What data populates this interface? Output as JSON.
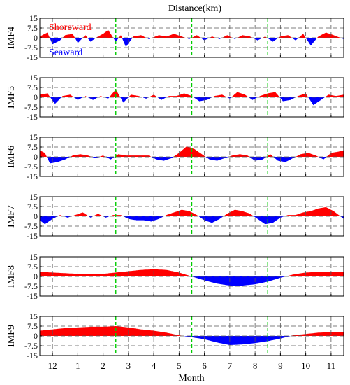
{
  "chart_data": {
    "type": "area",
    "title": "Distance(km)",
    "xlabel": "Month",
    "x_ticks": [
      "12",
      "1",
      "2",
      "3",
      "4",
      "5",
      "6",
      "7",
      "8",
      "9",
      "10",
      "11"
    ],
    "month_boundaries": [
      0,
      1,
      2,
      3,
      4,
      5,
      6,
      7,
      8,
      9,
      10,
      11,
      12
    ],
    "season_markers": [
      2.5,
      5.5,
      8.5
    ],
    "x_range": [
      -0.5,
      11.5
    ],
    "ylim": [
      -15,
      15
    ],
    "y_ticks": [
      "15",
      "7.5",
      "0",
      "-7.5",
      "-15"
    ],
    "y_tick_values": [
      15,
      7.5,
      0,
      -7.5,
      -15
    ],
    "legend": {
      "positive": "Shoreward",
      "negative": "Seaward"
    },
    "colors": {
      "positive": "#ff0000",
      "negative": "#0000ff",
      "marker": "#00cc00",
      "grid": "#555555"
    },
    "panels": [
      {
        "ylabel": "IMF4",
        "x": [
          -0.5,
          -0.2,
          0.0,
          0.3,
          0.5,
          0.8,
          1.0,
          1.3,
          1.5,
          1.8,
          2.0,
          2.2,
          2.5,
          2.7,
          2.9,
          3.2,
          3.5,
          3.8,
          4.2,
          4.5,
          4.8,
          5.1,
          5.4,
          5.7,
          6.0,
          6.3,
          6.6,
          6.9,
          7.2,
          7.5,
          7.8,
          8.1,
          8.4,
          8.7,
          9.0,
          9.3,
          9.6,
          9.9,
          10.2,
          10.5,
          10.8,
          11.1,
          11.5
        ],
        "y": [
          1,
          4,
          -5,
          -2,
          2,
          3,
          -4,
          2,
          -3,
          1,
          3,
          6,
          -3,
          2,
          -7,
          1,
          2,
          -1,
          2,
          1,
          3,
          1,
          -1,
          2,
          -2,
          1,
          -1,
          2,
          -1,
          2,
          1,
          -2,
          1,
          -3,
          1,
          2,
          -2,
          3,
          -6,
          1,
          4,
          2,
          -1
        ]
      },
      {
        "ylabel": "IMF5",
        "x": [
          -0.5,
          -0.2,
          0.1,
          0.4,
          0.7,
          1.0,
          1.3,
          1.6,
          1.9,
          2.2,
          2.5,
          2.8,
          3.1,
          3.4,
          3.7,
          4.0,
          4.3,
          4.6,
          4.9,
          5.2,
          5.5,
          5.8,
          6.1,
          6.4,
          6.7,
          7.0,
          7.3,
          7.6,
          7.9,
          8.2,
          8.5,
          8.8,
          9.1,
          9.4,
          9.7,
          10.0,
          10.3,
          10.6,
          10.9,
          11.2,
          11.5
        ],
        "y": [
          2,
          3,
          -5,
          1,
          2,
          -2,
          1,
          -2,
          1,
          -1,
          6,
          -4,
          2,
          1,
          -1,
          2,
          -2,
          1,
          1,
          3,
          1,
          -3,
          -2,
          1,
          2,
          -1,
          4,
          2,
          -2,
          1,
          3,
          4,
          -3,
          -2,
          1,
          3,
          -6,
          -2,
          2,
          1,
          2
        ]
      },
      {
        "ylabel": "IMF6",
        "x": [
          -0.5,
          -0.3,
          -0.1,
          0.2,
          0.5,
          0.8,
          1.1,
          1.4,
          1.7,
          2.0,
          2.3,
          2.6,
          2.9,
          3.2,
          3.5,
          3.8,
          4.1,
          4.4,
          4.7,
          5.0,
          5.3,
          5.6,
          5.9,
          6.2,
          6.5,
          6.8,
          7.1,
          7.4,
          7.7,
          8.0,
          8.3,
          8.6,
          8.9,
          9.2,
          9.5,
          9.8,
          10.1,
          10.4,
          10.7,
          11.0,
          11.3,
          11.5
        ],
        "y": [
          5,
          3,
          -5,
          -4,
          -2,
          1,
          2,
          1,
          -1,
          1,
          -2,
          2,
          1,
          1,
          1,
          1,
          -2,
          -3,
          -1,
          3,
          8,
          6,
          2,
          -2,
          -3,
          -1,
          1,
          2,
          1,
          -3,
          -2,
          2,
          -3,
          -4,
          -1,
          2,
          3,
          1,
          -2,
          3,
          4,
          5
        ]
      },
      {
        "ylabel": "IMF7",
        "x": [
          -0.5,
          -0.3,
          0.0,
          0.3,
          0.6,
          0.9,
          1.2,
          1.5,
          1.8,
          2.1,
          2.4,
          2.7,
          3.0,
          3.3,
          3.6,
          3.9,
          4.2,
          4.5,
          4.8,
          5.1,
          5.4,
          5.7,
          6.0,
          6.3,
          6.6,
          6.9,
          7.2,
          7.5,
          7.8,
          8.1,
          8.4,
          8.7,
          9.0,
          9.3,
          9.6,
          9.9,
          10.2,
          10.5,
          10.8,
          11.1,
          11.5
        ],
        "y": [
          -3,
          -6,
          -2,
          1,
          -1,
          1,
          3,
          -1,
          2,
          -1,
          1,
          1,
          -2,
          -3,
          -3,
          -4,
          -2,
          1,
          3,
          5,
          4,
          1,
          -3,
          -5,
          -2,
          2,
          5,
          4,
          2,
          -2,
          -6,
          -5,
          -1,
          1,
          1,
          3,
          4,
          6,
          7,
          4,
          -2
        ]
      },
      {
        "ylabel": "IMF8",
        "x": [
          -0.5,
          0.0,
          0.5,
          1.0,
          1.5,
          2.0,
          2.5,
          3.0,
          3.5,
          4.0,
          4.5,
          5.0,
          5.5,
          6.0,
          6.5,
          7.0,
          7.5,
          8.0,
          8.5,
          9.0,
          9.5,
          10.0,
          10.5,
          11.0,
          11.5
        ],
        "y": [
          3.5,
          3,
          2.5,
          2,
          2,
          2,
          3,
          4,
          5,
          5.5,
          5,
          3,
          0,
          -3,
          -5.5,
          -7,
          -7,
          -6,
          -4,
          -1,
          1.5,
          3,
          3.5,
          3.5,
          3.5
        ]
      },
      {
        "ylabel": "IMF9",
        "x": [
          -0.5,
          0.0,
          0.5,
          1.0,
          1.5,
          2.0,
          2.5,
          3.0,
          3.5,
          4.0,
          4.5,
          5.0,
          5.5,
          6.0,
          6.5,
          7.0,
          7.5,
          8.0,
          8.5,
          9.0,
          9.5,
          10.0,
          10.5,
          11.0,
          11.5
        ],
        "y": [
          4,
          5,
          6,
          6.5,
          7,
          7,
          7.5,
          6.5,
          5,
          4,
          2.5,
          0.5,
          -1,
          -2.5,
          -5,
          -7,
          -6.5,
          -5.5,
          -4,
          -2,
          0.5,
          1.5,
          2.5,
          3,
          3
        ]
      }
    ]
  }
}
